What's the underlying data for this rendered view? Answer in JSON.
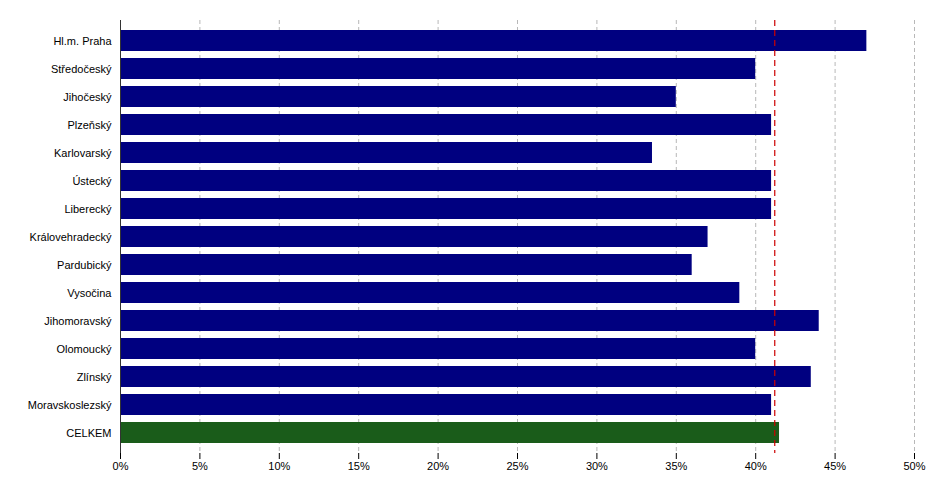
{
  "chart_data": {
    "type": "bar",
    "orientation": "horizontal",
    "categories": [
      "Hl.m. Praha",
      "Středočeský",
      "Jihočeský",
      "Plzeňský",
      "Karlovarský",
      "Ústecký",
      "Liberecký",
      "Královehradecký",
      "Pardubický",
      "Vysočina",
      "Jihomoravský",
      "Olomoucký",
      "Zlínský",
      "Moravskoslezský",
      "CELKEM"
    ],
    "values": [
      47.0,
      40.0,
      35.0,
      41.0,
      33.5,
      41.0,
      41.0,
      37.0,
      36.0,
      39.0,
      44.0,
      40.0,
      43.5,
      41.0,
      41.5
    ],
    "colors": [
      "#000080",
      "#000080",
      "#000080",
      "#000080",
      "#000080",
      "#000080",
      "#000080",
      "#000080",
      "#000080",
      "#000080",
      "#000080",
      "#000080",
      "#000080",
      "#000080",
      "#1a5c1a"
    ],
    "reference_line": {
      "value": 41.2,
      "color": "#cc0000"
    },
    "xlim": [
      0,
      50
    ],
    "xticks": [
      {
        "value": 0,
        "label": "0%"
      },
      {
        "value": 5,
        "label": "5%"
      },
      {
        "value": 10,
        "label": "10%"
      },
      {
        "value": 15,
        "label": "15%"
      },
      {
        "value": 20,
        "label": "20%"
      },
      {
        "value": 25,
        "label": "25%"
      },
      {
        "value": 30,
        "label": "30%"
      },
      {
        "value": 35,
        "label": "35%"
      },
      {
        "value": 40,
        "label": "40%"
      },
      {
        "value": 45,
        "label": "45%"
      },
      {
        "value": 50,
        "label": "50%"
      }
    ],
    "grid": true
  }
}
